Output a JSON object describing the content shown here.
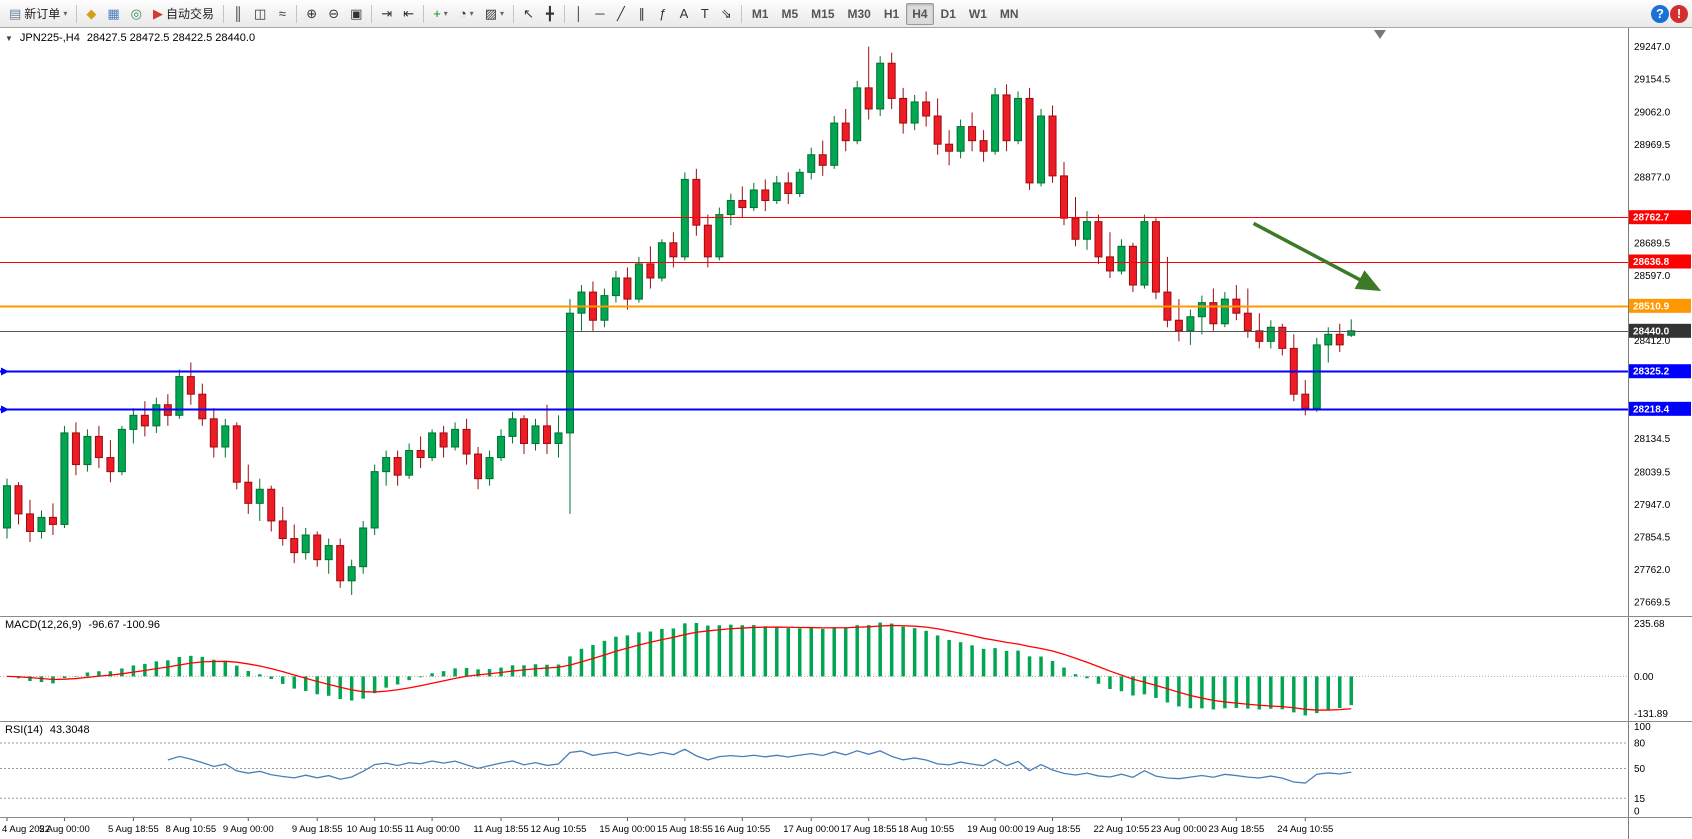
{
  "toolbar": {
    "items": [
      {
        "t": "btn",
        "name": "new-order-button",
        "glyph": "▤",
        "color": "#6b7f99",
        "label": "新订单",
        "caret": "▾"
      },
      {
        "t": "sep"
      },
      {
        "t": "btn",
        "name": "market-watch-button",
        "glyph": "◆",
        "color": "#d4a017"
      },
      {
        "t": "btn",
        "name": "data-window-button",
        "glyph": "▦",
        "color": "#4a7ebb"
      },
      {
        "t": "btn",
        "name": "navigator-button",
        "glyph": "◎",
        "color": "#2e8b57"
      },
      {
        "t": "btn",
        "name": "autotrading-button",
        "glyph": "▶",
        "color": "#d23b2e",
        "label": "自动交易"
      },
      {
        "t": "sep"
      },
      {
        "t": "btn",
        "name": "bar-chart-button",
        "glyph": "║",
        "color": "#333333"
      },
      {
        "t": "btn",
        "name": "candlestick-chart-button",
        "glyph": "◫",
        "color": "#333333"
      },
      {
        "t": "btn",
        "name": "line-chart-button",
        "glyph": "≈",
        "color": "#333333"
      },
      {
        "t": "sep"
      },
      {
        "t": "btn",
        "name": "zoom-in-button",
        "glyph": "⊕",
        "color": "#333333"
      },
      {
        "t": "btn",
        "name": "zoom-out-button",
        "glyph": "⊖",
        "color": "#333333"
      },
      {
        "t": "btn",
        "name": "tile-windows-button",
        "glyph": "▣",
        "color": "#333333"
      },
      {
        "t": "sep"
      },
      {
        "t": "btn",
        "name": "auto-scroll-button",
        "glyph": "⇥",
        "color": "#333333"
      },
      {
        "t": "btn",
        "name": "chart-shift-button",
        "glyph": "⇤",
        "color": "#333333"
      },
      {
        "t": "sep"
      },
      {
        "t": "btn",
        "name": "indicators-button",
        "glyph": "+",
        "color": "#0a8f08",
        "caret": "▾"
      },
      {
        "t": "btn",
        "name": "periods-button",
        "glyph": "◔",
        "color": "#333333",
        "caret": "▾"
      },
      {
        "t": "btn",
        "name": "templates-button",
        "glyph": "▨",
        "color": "#333333",
        "caret": "▾"
      },
      {
        "t": "sep"
      },
      {
        "t": "btn",
        "name": "cursor-button",
        "glyph": "↖",
        "color": "#333333"
      },
      {
        "t": "btn",
        "name": "crosshair-button",
        "glyph": "╋",
        "color": "#333333"
      },
      {
        "t": "sep"
      },
      {
        "t": "btn",
        "name": "vertical-line-button",
        "glyph": "│",
        "color": "#333333"
      },
      {
        "t": "btn",
        "name": "horizontal-line-button",
        "glyph": "─",
        "color": "#333333"
      },
      {
        "t": "btn",
        "name": "trendline-button",
        "glyph": "╱",
        "color": "#333333"
      },
      {
        "t": "btn",
        "name": "equidistant-channel-button",
        "glyph": "∥",
        "color": "#333333"
      },
      {
        "t": "btn",
        "name": "fibonacci-button",
        "glyph": "ƒ",
        "color": "#333333"
      },
      {
        "t": "btn",
        "name": "text-button",
        "glyph": "A",
        "color": "#333333"
      },
      {
        "t": "btn",
        "name": "text-label-button",
        "glyph": "T",
        "color": "#333333"
      },
      {
        "t": "btn",
        "name": "arrows-button",
        "glyph": "⇘",
        "color": "#333333"
      },
      {
        "t": "sep"
      },
      {
        "t": "tf",
        "name": "timeframe-m1-button",
        "label": "M1"
      },
      {
        "t": "tf",
        "name": "timeframe-m5-button",
        "label": "M5"
      },
      {
        "t": "tf",
        "name": "timeframe-m15-button",
        "label": "M15"
      },
      {
        "t": "tf",
        "name": "timeframe-m30-button",
        "label": "M30"
      },
      {
        "t": "tf",
        "name": "timeframe-h1-button",
        "label": "H1"
      },
      {
        "t": "tf",
        "name": "timeframe-h4-button",
        "label": "H4",
        "active": true
      },
      {
        "t": "tf",
        "name": "timeframe-d1-button",
        "label": "D1"
      },
      {
        "t": "tf",
        "name": "timeframe-w1-button",
        "label": "W1"
      },
      {
        "t": "tf",
        "name": "timeframe-mn-button",
        "label": "MN"
      },
      {
        "t": "spacer"
      },
      {
        "t": "btn",
        "name": "help-button",
        "circle": true,
        "color": "#1c6fd4",
        "glyph": "?"
      },
      {
        "t": "btn",
        "name": "notifications-button",
        "circle": true,
        "color": "#d32f2f",
        "glyph": "!"
      }
    ]
  },
  "chart": {
    "collapse_icon": "▼",
    "title_symbol": "JPN225-,H4",
    "title_ohlc": "28427.5 28472.5 28422.5 28440.0",
    "macd_label": "MACD(12,26,9)",
    "macd_values": "-96.67 -100.96",
    "rsi_label": "RSI(14)",
    "rsi_value": "43.3048",
    "shift_marker_index": 119.5,
    "colors": {
      "up": "#00A651",
      "up_border": "#00722F",
      "down": "#EE1C25",
      "down_border": "#9E0B0F",
      "macd_hist": "#00A651",
      "macd_signal": "#FF0000",
      "rsi_line": "#4A7EBB",
      "axis_line": "#7c7c7c"
    }
  },
  "chart_data": {
    "type": "candlestick",
    "symbol": "JPN225-",
    "timeframe": "H4",
    "current_bar": {
      "open": 28427.5,
      "high": 28472.5,
      "low": 28422.5,
      "close": 28440.0
    },
    "y_axis_labels": [
      "29247.0",
      "29154.5",
      "29062.0",
      "28969.5",
      "28877.0",
      "28689.5",
      "28597.0",
      "28412.0",
      "28134.5",
      "28039.5",
      "27947.0",
      "27854.5",
      "27762.0",
      "27669.5"
    ],
    "macd_axis_labels": [
      "235.68",
      "0.00",
      "-131.89"
    ],
    "rsi_axis_labels": [
      "100",
      "80",
      "50",
      "15",
      "0"
    ],
    "time_labels": [
      {
        "label": "4 Aug 2022",
        "i": 0
      },
      {
        "label": "5 Aug 00:00",
        "i": 5
      },
      {
        "label": "5 Aug 18:55",
        "i": 11
      },
      {
        "label": "8 Aug 10:55",
        "i": 16
      },
      {
        "label": "9 Aug 00:00",
        "i": 21
      },
      {
        "label": "9 Aug 18:55",
        "i": 27
      },
      {
        "label": "10 Aug 10:55",
        "i": 32
      },
      {
        "label": "11 Aug 00:00",
        "i": 37
      },
      {
        "label": "11 Aug 18:55",
        "i": 43
      },
      {
        "label": "12 Aug 10:55",
        "i": 48
      },
      {
        "label": "15 Aug 00:00",
        "i": 54
      },
      {
        "label": "15 Aug 18:55",
        "i": 59
      },
      {
        "label": "16 Aug 10:55",
        "i": 64
      },
      {
        "label": "17 Aug 00:00",
        "i": 70
      },
      {
        "label": "17 Aug 18:55",
        "i": 75
      },
      {
        "label": "18 Aug 10:55",
        "i": 80
      },
      {
        "label": "19 Aug 00:00",
        "i": 86
      },
      {
        "label": "19 Aug 18:55",
        "i": 91
      },
      {
        "label": "22 Aug 10:55",
        "i": 97
      },
      {
        "label": "23 Aug 00:00",
        "i": 102
      },
      {
        "label": "23 Aug 18:55",
        "i": 107
      },
      {
        "label": "24 Aug 10:55",
        "i": 113
      }
    ],
    "levels": [
      {
        "price": 28762.7,
        "label": "28762.7",
        "color": "#FF0000",
        "width": 1
      },
      {
        "price": 28636.8,
        "label": "28636.8",
        "color": "#FF0000",
        "width": 1
      },
      {
        "price": 28510.9,
        "label": "28510.9",
        "color": "#FF9800",
        "width": 2
      },
      {
        "price": 28440.0,
        "label": "28440.0",
        "color": "#555555",
        "tag_color": "#333333",
        "width": 1,
        "is_price_line": true
      },
      {
        "price": 28325.2,
        "label": "28325.2",
        "color": "#0000FF",
        "width": 2,
        "left_marker": true
      },
      {
        "price": 28218.4,
        "label": "28218.4",
        "color": "#0000FF",
        "width": 2,
        "left_marker": true
      }
    ],
    "annotations": [
      {
        "type": "arrow",
        "color": "#3D7A28",
        "x1_index": 108.5,
        "y1_price": 28745,
        "x2_index": 119.2,
        "y2_price": 28560
      }
    ],
    "indicators": {
      "macd": {
        "fast": 12,
        "slow": 26,
        "signal": 9,
        "display_values": [
          -96.67,
          -100.96
        ]
      },
      "rsi": {
        "period": 14,
        "display_value": 43.3048,
        "levels": [
          80,
          50,
          15
        ]
      }
    },
    "ohlc": [
      [
        27880,
        28020,
        27850,
        28000
      ],
      [
        28000,
        28010,
        27890,
        27920
      ],
      [
        27920,
        27960,
        27840,
        27870
      ],
      [
        27870,
        27930,
        27850,
        27910
      ],
      [
        27910,
        27950,
        27860,
        27890
      ],
      [
        27890,
        28170,
        27880,
        28150
      ],
      [
        28150,
        28180,
        28030,
        28060
      ],
      [
        28060,
        28160,
        28040,
        28140
      ],
      [
        28140,
        28170,
        28050,
        28080
      ],
      [
        28080,
        28130,
        28010,
        28040
      ],
      [
        28040,
        28170,
        28030,
        28160
      ],
      [
        28160,
        28220,
        28120,
        28200
      ],
      [
        28200,
        28240,
        28140,
        28170
      ],
      [
        28170,
        28250,
        28150,
        28230
      ],
      [
        28230,
        28260,
        28170,
        28200
      ],
      [
        28200,
        28330,
        28190,
        28310
      ],
      [
        28310,
        28350,
        28230,
        28260
      ],
      [
        28260,
        28290,
        28170,
        28190
      ],
      [
        28190,
        28220,
        28080,
        28110
      ],
      [
        28110,
        28190,
        28080,
        28170
      ],
      [
        28170,
        28180,
        27990,
        28010
      ],
      [
        28010,
        28060,
        27920,
        27950
      ],
      [
        27950,
        28020,
        27900,
        27990
      ],
      [
        27990,
        28000,
        27870,
        27900
      ],
      [
        27900,
        27940,
        27830,
        27850
      ],
      [
        27850,
        27890,
        27780,
        27810
      ],
      [
        27810,
        27880,
        27790,
        27860
      ],
      [
        27860,
        27870,
        27770,
        27790
      ],
      [
        27790,
        27850,
        27750,
        27830
      ],
      [
        27830,
        27850,
        27710,
        27730
      ],
      [
        27730,
        27790,
        27690,
        27770
      ],
      [
        27770,
        27900,
        27750,
        27880
      ],
      [
        27880,
        28060,
        27860,
        28040
      ],
      [
        28040,
        28100,
        28000,
        28080
      ],
      [
        28080,
        28100,
        28000,
        28030
      ],
      [
        28030,
        28120,
        28020,
        28100
      ],
      [
        28100,
        28140,
        28050,
        28080
      ],
      [
        28080,
        28160,
        28070,
        28150
      ],
      [
        28150,
        28170,
        28080,
        28110
      ],
      [
        28110,
        28180,
        28100,
        28160
      ],
      [
        28160,
        28190,
        28060,
        28090
      ],
      [
        28090,
        28110,
        27990,
        28020
      ],
      [
        28020,
        28100,
        28000,
        28080
      ],
      [
        28080,
        28160,
        28070,
        28140
      ],
      [
        28140,
        28210,
        28120,
        28190
      ],
      [
        28190,
        28200,
        28090,
        28120
      ],
      [
        28120,
        28190,
        28100,
        28170
      ],
      [
        28170,
        28230,
        28090,
        28120
      ],
      [
        28120,
        28200,
        28080,
        28150
      ],
      [
        28150,
        28530,
        27920,
        28490
      ],
      [
        28490,
        28570,
        28440,
        28550
      ],
      [
        28550,
        28580,
        28440,
        28470
      ],
      [
        28470,
        28560,
        28450,
        28540
      ],
      [
        28540,
        28610,
        28520,
        28590
      ],
      [
        28590,
        28620,
        28500,
        28530
      ],
      [
        28530,
        28650,
        28520,
        28630
      ],
      [
        28630,
        28680,
        28560,
        28590
      ],
      [
        28590,
        28700,
        28580,
        28690
      ],
      [
        28690,
        28720,
        28620,
        28650
      ],
      [
        28650,
        28890,
        28640,
        28870
      ],
      [
        28870,
        28900,
        28710,
        28740
      ],
      [
        28740,
        28770,
        28620,
        28650
      ],
      [
        28650,
        28790,
        28640,
        28770
      ],
      [
        28770,
        28830,
        28740,
        28810
      ],
      [
        28810,
        28850,
        28760,
        28790
      ],
      [
        28790,
        28860,
        28780,
        28840
      ],
      [
        28840,
        28870,
        28780,
        28810
      ],
      [
        28810,
        28880,
        28800,
        28860
      ],
      [
        28860,
        28890,
        28800,
        28830
      ],
      [
        28830,
        28900,
        28820,
        28890
      ],
      [
        28890,
        28960,
        28870,
        28940
      ],
      [
        28940,
        28980,
        28880,
        28910
      ],
      [
        28910,
        29050,
        28900,
        29030
      ],
      [
        29030,
        29070,
        28950,
        28980
      ],
      [
        28980,
        29150,
        28970,
        29130
      ],
      [
        29130,
        29247,
        29040,
        29070
      ],
      [
        29070,
        29220,
        29050,
        29200
      ],
      [
        29200,
        29230,
        29070,
        29100
      ],
      [
        29100,
        29130,
        29000,
        29030
      ],
      [
        29030,
        29110,
        29010,
        29090
      ],
      [
        29090,
        29120,
        29020,
        29050
      ],
      [
        29050,
        29100,
        28940,
        28970
      ],
      [
        28970,
        29010,
        28910,
        28950
      ],
      [
        28950,
        29040,
        28930,
        29020
      ],
      [
        29020,
        29060,
        28950,
        28980
      ],
      [
        28980,
        29010,
        28920,
        28950
      ],
      [
        28950,
        29130,
        28940,
        29110
      ],
      [
        29110,
        29140,
        28950,
        28980
      ],
      [
        28980,
        29120,
        28970,
        29100
      ],
      [
        29100,
        29130,
        28840,
        28860
      ],
      [
        28860,
        29070,
        28850,
        29050
      ],
      [
        29050,
        29080,
        28860,
        28880
      ],
      [
        28880,
        28920,
        28740,
        28760
      ],
      [
        28760,
        28820,
        28680,
        28700
      ],
      [
        28700,
        28780,
        28670,
        28750
      ],
      [
        28750,
        28770,
        28630,
        28650
      ],
      [
        28650,
        28720,
        28590,
        28610
      ],
      [
        28610,
        28700,
        28600,
        28680
      ],
      [
        28680,
        28690,
        28550,
        28570
      ],
      [
        28570,
        28770,
        28560,
        28750
      ],
      [
        28750,
        28760,
        28530,
        28550
      ],
      [
        28550,
        28650,
        28450,
        28470
      ],
      [
        28470,
        28530,
        28410,
        28440
      ],
      [
        28440,
        28500,
        28400,
        28480
      ],
      [
        28480,
        28540,
        28430,
        28520
      ],
      [
        28520,
        28560,
        28440,
        28460
      ],
      [
        28460,
        28550,
        28450,
        28530
      ],
      [
        28530,
        28570,
        28470,
        28490
      ],
      [
        28490,
        28560,
        28420,
        28440
      ],
      [
        28440,
        28490,
        28390,
        28410
      ],
      [
        28410,
        28470,
        28390,
        28450
      ],
      [
        28450,
        28460,
        28370,
        28390
      ],
      [
        28390,
        28430,
        28240,
        28260
      ],
      [
        28260,
        28300,
        28200,
        28220
      ],
      [
        28220,
        28420,
        28210,
        28400
      ],
      [
        28400,
        28450,
        28350,
        28430
      ],
      [
        28430,
        28460,
        28380,
        28400
      ],
      [
        28427.5,
        28472.5,
        28422.5,
        28440.0
      ]
    ]
  }
}
